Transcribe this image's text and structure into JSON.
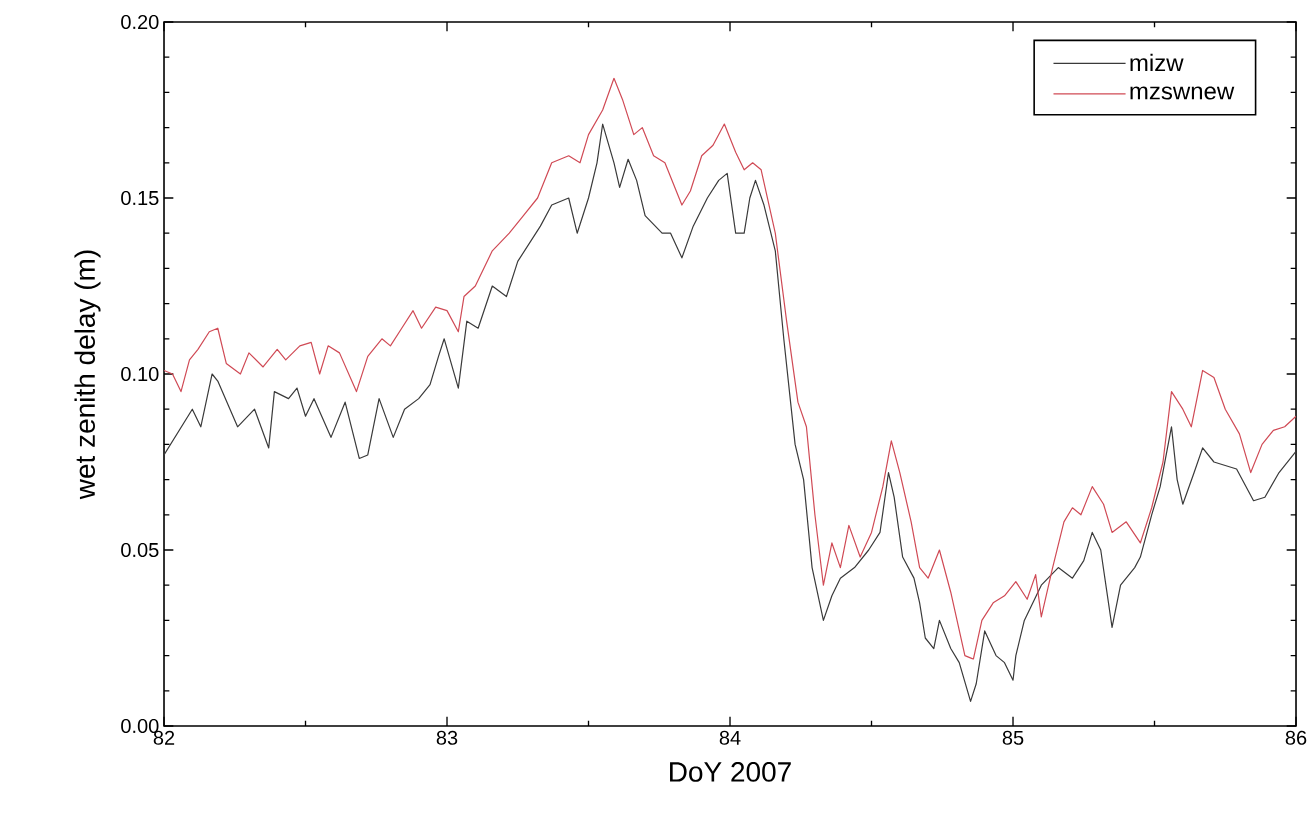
{
  "chart_data": {
    "type": "line",
    "xlabel": "DoY 2007",
    "ylabel": "wet zenith delay (m)",
    "xlim": [
      82,
      86
    ],
    "xticks": [
      82,
      83,
      84,
      85,
      86
    ],
    "ylim": [
      0,
      0.2
    ],
    "yticks": [
      {
        "value": 0,
        "label": "0.00"
      },
      {
        "value": 0.05,
        "label": "0.05"
      },
      {
        "value": 0.1,
        "label": "0.10"
      },
      {
        "value": 0.15,
        "label": "0.15"
      },
      {
        "value": 0.2,
        "label": "0.20"
      }
    ],
    "grid": false,
    "legend": "top right",
    "marker": "none",
    "line_style": "solid",
    "series": [
      {
        "name": "mizw",
        "color": "#3a3a3a",
        "x": [
          82.0,
          82.1,
          82.13,
          82.17,
          82.19,
          82.26,
          82.32,
          82.37,
          82.39,
          82.44,
          82.47,
          82.5,
          82.53,
          82.59,
          82.64,
          82.69,
          82.72,
          82.76,
          82.81,
          82.85,
          82.9,
          82.94,
          82.97,
          82.99,
          83.04,
          83.07,
          83.11,
          83.16,
          83.21,
          83.25,
          83.33,
          83.37,
          83.43,
          83.46,
          83.5,
          83.53,
          83.55,
          83.59,
          83.61,
          83.64,
          83.67,
          83.7,
          83.76,
          83.79,
          83.83,
          83.87,
          83.92,
          83.96,
          83.99,
          84.02,
          84.05,
          84.07,
          84.09,
          84.12,
          84.16,
          84.19,
          84.23,
          84.26,
          84.29,
          84.33,
          84.36,
          84.39,
          84.44,
          84.49,
          84.53,
          84.56,
          84.58,
          84.61,
          84.65,
          84.67,
          84.69,
          84.72,
          84.74,
          84.78,
          84.81,
          84.85,
          84.87,
          84.9,
          84.94,
          84.97,
          85.0,
          85.01,
          85.04,
          85.1,
          85.16,
          85.21,
          85.25,
          85.28,
          85.31,
          85.35,
          85.38,
          85.43,
          85.45,
          85.49,
          85.52,
          85.56,
          85.58,
          85.6,
          85.64,
          85.67,
          85.71,
          85.79,
          85.85,
          85.89,
          85.94,
          86.0
        ],
        "values": [
          0.077,
          0.09,
          0.085,
          0.1,
          0.098,
          0.085,
          0.09,
          0.079,
          0.095,
          0.093,
          0.096,
          0.088,
          0.093,
          0.082,
          0.092,
          0.076,
          0.077,
          0.093,
          0.082,
          0.09,
          0.093,
          0.097,
          0.105,
          0.11,
          0.096,
          0.115,
          0.113,
          0.125,
          0.122,
          0.132,
          0.142,
          0.148,
          0.15,
          0.14,
          0.15,
          0.16,
          0.171,
          0.16,
          0.153,
          0.161,
          0.155,
          0.145,
          0.14,
          0.14,
          0.133,
          0.142,
          0.15,
          0.155,
          0.157,
          0.14,
          0.14,
          0.15,
          0.155,
          0.148,
          0.135,
          0.11,
          0.08,
          0.07,
          0.045,
          0.03,
          0.037,
          0.042,
          0.045,
          0.05,
          0.055,
          0.072,
          0.065,
          0.048,
          0.042,
          0.035,
          0.025,
          0.022,
          0.03,
          0.022,
          0.018,
          0.007,
          0.012,
          0.027,
          0.02,
          0.018,
          0.013,
          0.02,
          0.03,
          0.04,
          0.045,
          0.042,
          0.047,
          0.055,
          0.05,
          0.028,
          0.04,
          0.045,
          0.048,
          0.06,
          0.068,
          0.085,
          0.07,
          0.063,
          0.072,
          0.079,
          0.075,
          0.073,
          0.064,
          0.065,
          0.072,
          0.078
        ]
      },
      {
        "name": "mzswnew",
        "color": "#d04a55",
        "x": [
          82.0,
          82.03,
          82.06,
          82.09,
          82.12,
          82.16,
          82.19,
          82.22,
          82.27,
          82.3,
          82.35,
          82.4,
          82.43,
          82.48,
          82.52,
          82.55,
          82.58,
          82.62,
          82.68,
          82.72,
          82.77,
          82.8,
          82.84,
          82.88,
          82.91,
          82.96,
          83.0,
          83.04,
          83.06,
          83.1,
          83.16,
          83.22,
          83.27,
          83.32,
          83.37,
          83.43,
          83.47,
          83.5,
          83.55,
          83.59,
          83.62,
          83.66,
          83.69,
          83.73,
          83.77,
          83.83,
          83.86,
          83.9,
          83.94,
          83.98,
          84.02,
          84.05,
          84.08,
          84.11,
          84.16,
          84.2,
          84.24,
          84.27,
          84.3,
          84.33,
          84.36,
          84.39,
          84.42,
          84.46,
          84.5,
          84.54,
          84.57,
          84.6,
          84.64,
          84.67,
          84.7,
          84.74,
          84.78,
          84.83,
          84.86,
          84.89,
          84.93,
          84.97,
          85.01,
          85.05,
          85.08,
          85.1,
          85.14,
          85.18,
          85.21,
          85.24,
          85.28,
          85.32,
          85.35,
          85.4,
          85.45,
          85.49,
          85.53,
          85.56,
          85.6,
          85.63,
          85.67,
          85.71,
          85.75,
          85.8,
          85.84,
          85.88,
          85.92,
          85.96,
          86.0
        ],
        "values": [
          0.101,
          0.1,
          0.095,
          0.104,
          0.107,
          0.112,
          0.113,
          0.103,
          0.1,
          0.106,
          0.102,
          0.107,
          0.104,
          0.108,
          0.109,
          0.1,
          0.108,
          0.106,
          0.095,
          0.105,
          0.11,
          0.108,
          0.113,
          0.118,
          0.113,
          0.119,
          0.118,
          0.112,
          0.122,
          0.125,
          0.135,
          0.14,
          0.145,
          0.15,
          0.16,
          0.162,
          0.16,
          0.168,
          0.175,
          0.184,
          0.178,
          0.168,
          0.17,
          0.162,
          0.16,
          0.148,
          0.152,
          0.162,
          0.165,
          0.171,
          0.163,
          0.158,
          0.16,
          0.158,
          0.14,
          0.115,
          0.092,
          0.085,
          0.06,
          0.04,
          0.052,
          0.045,
          0.057,
          0.048,
          0.055,
          0.068,
          0.081,
          0.072,
          0.058,
          0.045,
          0.042,
          0.05,
          0.038,
          0.02,
          0.019,
          0.03,
          0.035,
          0.037,
          0.041,
          0.036,
          0.043,
          0.031,
          0.045,
          0.058,
          0.062,
          0.06,
          0.068,
          0.063,
          0.055,
          0.058,
          0.052,
          0.062,
          0.075,
          0.095,
          0.09,
          0.085,
          0.101,
          0.099,
          0.09,
          0.083,
          0.072,
          0.08,
          0.084,
          0.085,
          0.088
        ]
      }
    ]
  }
}
